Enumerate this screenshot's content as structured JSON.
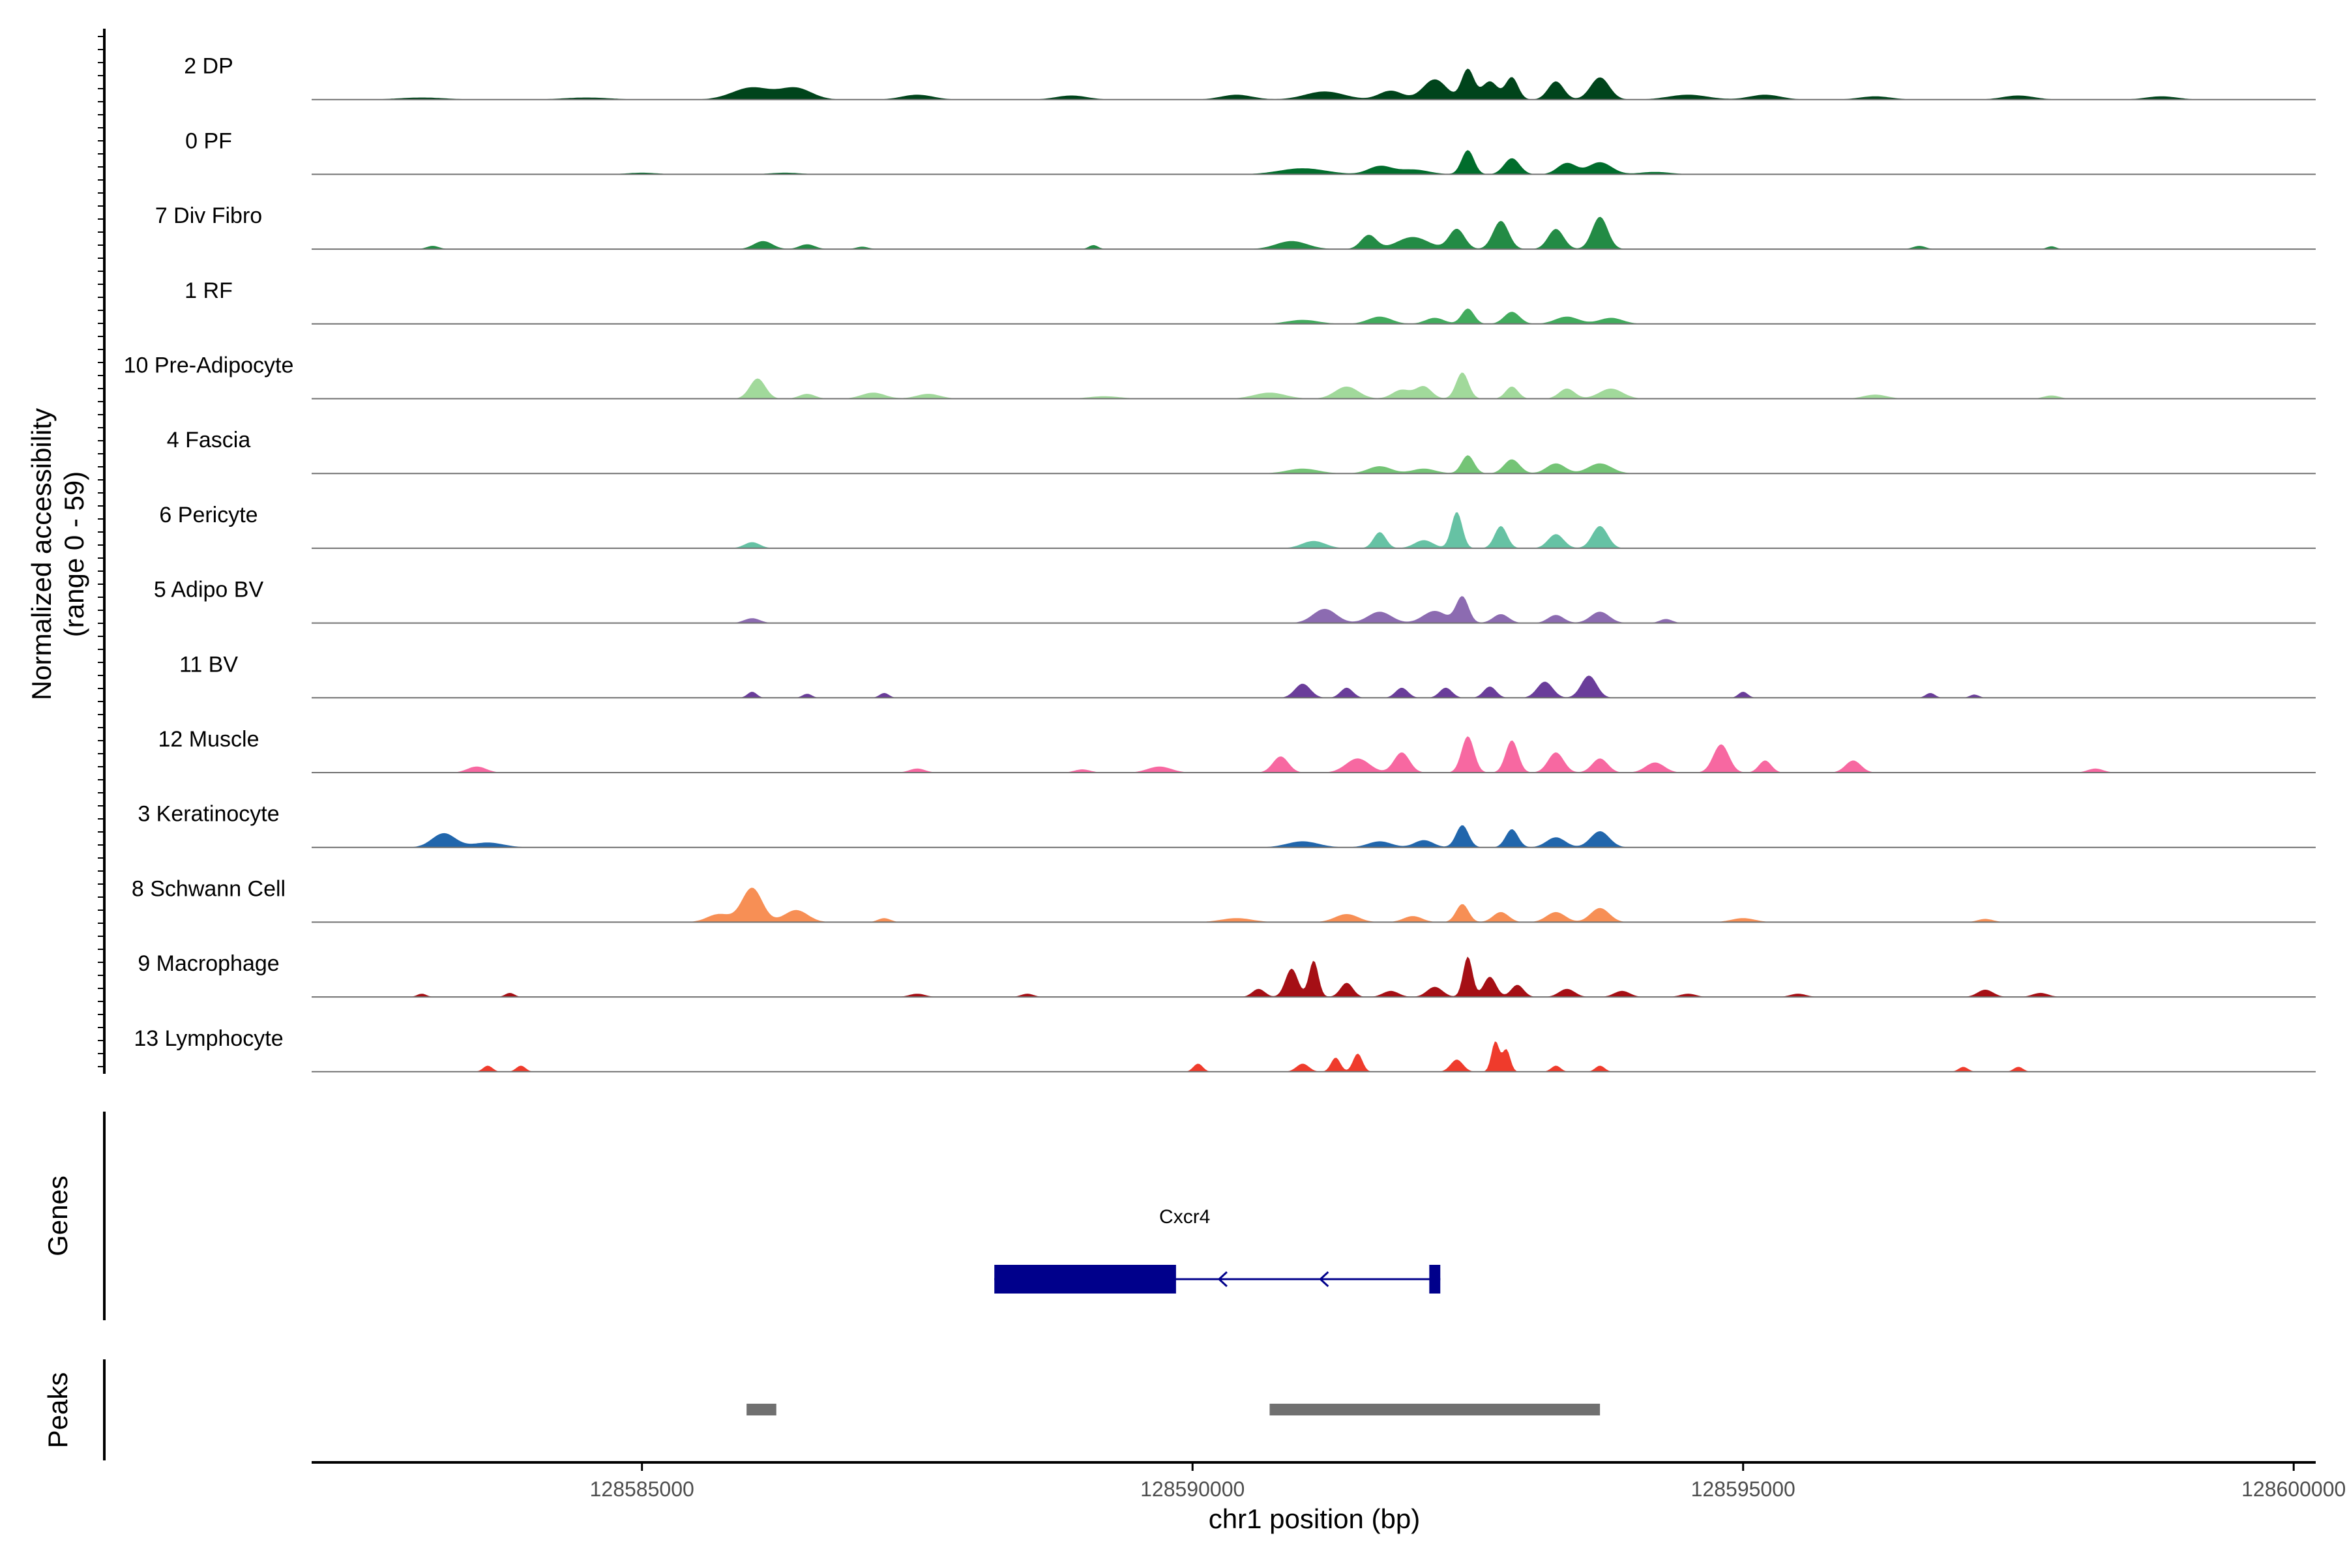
{
  "chart_data": {
    "type": "area",
    "subtype": "genome-coverage-tracks",
    "ylabel": "Normalized accessibility",
    "ylabel_range": "(range 0 - 59)",
    "ylim": [
      0,
      59
    ],
    "xlabel": "chr1 position (bp)",
    "xlim": [
      128582000,
      128600200
    ],
    "x_ticks": [
      128585000,
      128590000,
      128595000,
      128600000
    ],
    "x_tick_labels": [
      "128585000",
      "128590000",
      "128595000",
      "128600000"
    ],
    "grid": false,
    "legend": "none",
    "panel_labels": {
      "genes": "Genes",
      "peaks": "Peaks"
    },
    "tracks": [
      {
        "name": "2 DP",
        "color": "#00441b",
        "peaks": [
          [
            128583000,
            0.05,
            300
          ],
          [
            128584500,
            0.05,
            300
          ],
          [
            128586000,
            0.3,
            250
          ],
          [
            128586400,
            0.28,
            200
          ],
          [
            128587500,
            0.12,
            200
          ],
          [
            128588900,
            0.1,
            200
          ],
          [
            128590400,
            0.12,
            200
          ],
          [
            128591200,
            0.2,
            250
          ],
          [
            128591800,
            0.22,
            150
          ],
          [
            128592200,
            0.5,
            150
          ],
          [
            128592500,
            0.75,
            80
          ],
          [
            128592700,
            0.45,
            100
          ],
          [
            128592900,
            0.55,
            80
          ],
          [
            128593300,
            0.45,
            100
          ],
          [
            128593700,
            0.55,
            120
          ],
          [
            128594500,
            0.12,
            250
          ],
          [
            128595200,
            0.12,
            200
          ],
          [
            128596200,
            0.08,
            200
          ],
          [
            128597500,
            0.1,
            200
          ],
          [
            128598800,
            0.08,
            200
          ]
        ]
      },
      {
        "name": "0 PF",
        "color": "#006d2c",
        "peaks": [
          [
            128585000,
            0.04,
            200
          ],
          [
            128586300,
            0.04,
            200
          ],
          [
            128591000,
            0.15,
            300
          ],
          [
            128591700,
            0.2,
            150
          ],
          [
            128592000,
            0.12,
            200
          ],
          [
            128592500,
            0.6,
            80
          ],
          [
            128592900,
            0.4,
            100
          ],
          [
            128593400,
            0.28,
            120
          ],
          [
            128593700,
            0.3,
            150
          ],
          [
            128594200,
            0.06,
            200
          ]
        ]
      },
      {
        "name": "7 Div Fibro",
        "color": "#238b45",
        "peaks": [
          [
            128583100,
            0.08,
            80
          ],
          [
            128586100,
            0.2,
            120
          ],
          [
            128586500,
            0.12,
            100
          ],
          [
            128587000,
            0.06,
            80
          ],
          [
            128589100,
            0.1,
            60
          ],
          [
            128590900,
            0.2,
            200
          ],
          [
            128591600,
            0.35,
            100
          ],
          [
            128592000,
            0.3,
            200
          ],
          [
            128592400,
            0.5,
            100
          ],
          [
            128592800,
            0.7,
            100
          ],
          [
            128593300,
            0.5,
            100
          ],
          [
            128593700,
            0.8,
            100
          ],
          [
            128596600,
            0.08,
            80
          ],
          [
            128597800,
            0.07,
            60
          ]
        ]
      },
      {
        "name": "1 RF",
        "color": "#41ab5d",
        "peaks": [
          [
            128591000,
            0.1,
            200
          ],
          [
            128591700,
            0.18,
            150
          ],
          [
            128592200,
            0.15,
            120
          ],
          [
            128592500,
            0.38,
            80
          ],
          [
            128592900,
            0.3,
            100
          ],
          [
            128593400,
            0.18,
            150
          ],
          [
            128593800,
            0.15,
            150
          ]
        ]
      },
      {
        "name": "10 Pre-Adipocyte",
        "color": "#a1d99b",
        "peaks": [
          [
            128586050,
            0.5,
            100
          ],
          [
            128586500,
            0.12,
            100
          ],
          [
            128587100,
            0.15,
            150
          ],
          [
            128587600,
            0.12,
            150
          ],
          [
            128589200,
            0.06,
            200
          ],
          [
            128590700,
            0.15,
            200
          ],
          [
            128591400,
            0.3,
            150
          ],
          [
            128591900,
            0.22,
            120
          ],
          [
            128592100,
            0.3,
            100
          ],
          [
            128592450,
            0.65,
            80
          ],
          [
            128592900,
            0.3,
            80
          ],
          [
            128593400,
            0.25,
            100
          ],
          [
            128593800,
            0.25,
            150
          ],
          [
            128596200,
            0.1,
            150
          ],
          [
            128597800,
            0.08,
            100
          ]
        ]
      },
      {
        "name": "4 Fascia",
        "color": "#74c476",
        "peaks": [
          [
            128591000,
            0.12,
            200
          ],
          [
            128591700,
            0.18,
            150
          ],
          [
            128592100,
            0.12,
            150
          ],
          [
            128592500,
            0.45,
            80
          ],
          [
            128592900,
            0.35,
            100
          ],
          [
            128593300,
            0.25,
            120
          ],
          [
            128593700,
            0.25,
            150
          ]
        ]
      },
      {
        "name": "6 Pericyte",
        "color": "#66c2a4",
        "peaks": [
          [
            128586000,
            0.15,
            100
          ],
          [
            128591100,
            0.18,
            150
          ],
          [
            128591700,
            0.4,
            80
          ],
          [
            128592100,
            0.2,
            120
          ],
          [
            128592400,
            0.9,
            70
          ],
          [
            128592800,
            0.55,
            80
          ],
          [
            128593300,
            0.35,
            100
          ],
          [
            128593700,
            0.55,
            100
          ]
        ]
      },
      {
        "name": "5 Adipo BV",
        "color": "#8c6bb1",
        "peaks": [
          [
            128586000,
            0.12,
            100
          ],
          [
            128591200,
            0.35,
            150
          ],
          [
            128591700,
            0.28,
            150
          ],
          [
            128592200,
            0.3,
            150
          ],
          [
            128592450,
            0.65,
            80
          ],
          [
            128592800,
            0.22,
            100
          ],
          [
            128593300,
            0.2,
            100
          ],
          [
            128593700,
            0.28,
            120
          ],
          [
            128594300,
            0.1,
            80
          ]
        ]
      },
      {
        "name": "11 BV",
        "color": "#6a3d9a",
        "peaks": [
          [
            128586000,
            0.15,
            60
          ],
          [
            128586500,
            0.1,
            60
          ],
          [
            128587200,
            0.12,
            60
          ],
          [
            128591000,
            0.35,
            100
          ],
          [
            128591400,
            0.25,
            80
          ],
          [
            128591900,
            0.25,
            80
          ],
          [
            128592300,
            0.25,
            80
          ],
          [
            128592700,
            0.28,
            80
          ],
          [
            128593200,
            0.4,
            100
          ],
          [
            128593600,
            0.55,
            100
          ],
          [
            128595000,
            0.15,
            60
          ],
          [
            128596700,
            0.12,
            60
          ],
          [
            128597100,
            0.08,
            60
          ]
        ]
      },
      {
        "name": "12 Muscle",
        "color": "#f768a1",
        "peaks": [
          [
            128583500,
            0.15,
            120
          ],
          [
            128587500,
            0.1,
            100
          ],
          [
            128589000,
            0.08,
            100
          ],
          [
            128589700,
            0.15,
            150
          ],
          [
            128590800,
            0.4,
            100
          ],
          [
            128591500,
            0.35,
            150
          ],
          [
            128591900,
            0.5,
            100
          ],
          [
            128592500,
            0.9,
            80
          ],
          [
            128592900,
            0.8,
            80
          ],
          [
            128593300,
            0.5,
            100
          ],
          [
            128593700,
            0.35,
            100
          ],
          [
            128594200,
            0.25,
            120
          ],
          [
            128594800,
            0.7,
            100
          ],
          [
            128595200,
            0.3,
            80
          ],
          [
            128596000,
            0.3,
            100
          ],
          [
            128598200,
            0.1,
            100
          ]
        ]
      },
      {
        "name": "3 Keratinocyte",
        "color": "#2166ac",
        "peaks": [
          [
            128583200,
            0.35,
            150
          ],
          [
            128583600,
            0.12,
            200
          ],
          [
            128591000,
            0.15,
            200
          ],
          [
            128591700,
            0.15,
            150
          ],
          [
            128592100,
            0.18,
            120
          ],
          [
            128592450,
            0.55,
            80
          ],
          [
            128592900,
            0.45,
            80
          ],
          [
            128593300,
            0.25,
            120
          ],
          [
            128593700,
            0.4,
            120
          ]
        ]
      },
      {
        "name": "8 Schwann Cell",
        "color": "#f78f55",
        "peaks": [
          [
            128585700,
            0.2,
            150
          ],
          [
            128586000,
            0.85,
            130
          ],
          [
            128586400,
            0.3,
            150
          ],
          [
            128587200,
            0.1,
            80
          ],
          [
            128590400,
            0.1,
            200
          ],
          [
            128591400,
            0.2,
            150
          ],
          [
            128592000,
            0.15,
            120
          ],
          [
            128592450,
            0.45,
            80
          ],
          [
            128592800,
            0.25,
            100
          ],
          [
            128593300,
            0.25,
            120
          ],
          [
            128593700,
            0.35,
            120
          ],
          [
            128595000,
            0.1,
            150
          ],
          [
            128597200,
            0.08,
            100
          ]
        ]
      },
      {
        "name": "9 Macrophage",
        "color": "#a50f15",
        "peaks": [
          [
            128583000,
            0.08,
            60
          ],
          [
            128583800,
            0.1,
            60
          ],
          [
            128587500,
            0.08,
            100
          ],
          [
            128588500,
            0.08,
            80
          ],
          [
            128590600,
            0.2,
            80
          ],
          [
            128590900,
            0.7,
            80
          ],
          [
            128591100,
            0.9,
            60
          ],
          [
            128591400,
            0.35,
            80
          ],
          [
            128591800,
            0.15,
            100
          ],
          [
            128592200,
            0.25,
            100
          ],
          [
            128592500,
            1.0,
            60
          ],
          [
            128592700,
            0.5,
            80
          ],
          [
            128592950,
            0.3,
            80
          ],
          [
            128593400,
            0.2,
            100
          ],
          [
            128593900,
            0.15,
            100
          ],
          [
            128594500,
            0.08,
            100
          ],
          [
            128595500,
            0.08,
            100
          ],
          [
            128597200,
            0.18,
            100
          ],
          [
            128597700,
            0.1,
            100
          ]
        ]
      },
      {
        "name": "13 Lymphocyte",
        "color": "#ef3b2c",
        "peaks": [
          [
            128583600,
            0.15,
            60
          ],
          [
            128583900,
            0.15,
            60
          ],
          [
            128590050,
            0.2,
            60
          ],
          [
            128591000,
            0.2,
            80
          ],
          [
            128591300,
            0.35,
            60
          ],
          [
            128591500,
            0.45,
            60
          ],
          [
            128592400,
            0.3,
            80
          ],
          [
            128592750,
            0.75,
            50
          ],
          [
            128592850,
            0.55,
            50
          ],
          [
            128593300,
            0.15,
            60
          ],
          [
            128593700,
            0.15,
            60
          ],
          [
            128597000,
            0.12,
            60
          ],
          [
            128597500,
            0.12,
            60
          ]
        ]
      }
    ],
    "genes": [
      {
        "name": "Cxcr4",
        "start": 128588200,
        "end": 128592250,
        "strand": "-",
        "color": "#00008b",
        "exons": [
          [
            128588200,
            128589850
          ],
          [
            128592150,
            128592250
          ]
        ]
      }
    ],
    "peaks_regions": [
      {
        "start": 128585950,
        "end": 128586220
      },
      {
        "start": 128590700,
        "end": 128593700
      }
    ],
    "peaks_color": "#707070"
  }
}
